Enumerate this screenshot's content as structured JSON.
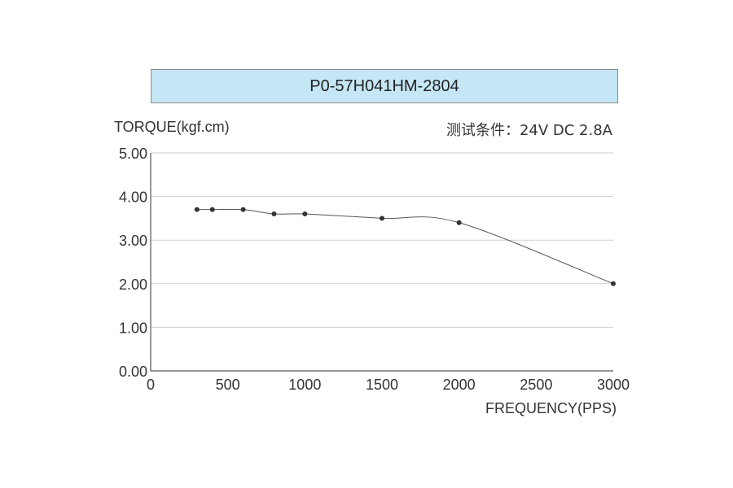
{
  "chart_data": {
    "type": "line",
    "title": "P0-57H041HM-2804",
    "ylabel": "TORQUE(kgf.cm)",
    "xlabel": "FREQUENCY(PPS)",
    "condition": "测试条件：24V DC   2.8A",
    "xlim": [
      0,
      3000
    ],
    "ylim": [
      0,
      5
    ],
    "x_ticks": [
      0,
      500,
      1000,
      1500,
      2000,
      2500,
      3000
    ],
    "x_tick_labels": [
      "0",
      "500",
      "1000",
      "1500",
      "2000",
      "2500",
      "3000"
    ],
    "y_ticks": [
      0,
      1,
      2,
      3,
      4,
      5
    ],
    "y_tick_labels": [
      "0.00",
      "1.00",
      "2.00",
      "3.00",
      "4.00",
      "5.00"
    ],
    "grid": "horizontal",
    "series": [
      {
        "x": [
          300,
          400,
          600,
          800,
          1000,
          1500,
          2000,
          3000
        ],
        "y": [
          3.7,
          3.7,
          3.7,
          3.6,
          3.6,
          3.5,
          3.4,
          2.0
        ]
      }
    ],
    "colors": {
      "line": "#555555",
      "marker": "#333333",
      "grid": "#cfcfcf",
      "title_bg": "#c5e6f5"
    }
  }
}
